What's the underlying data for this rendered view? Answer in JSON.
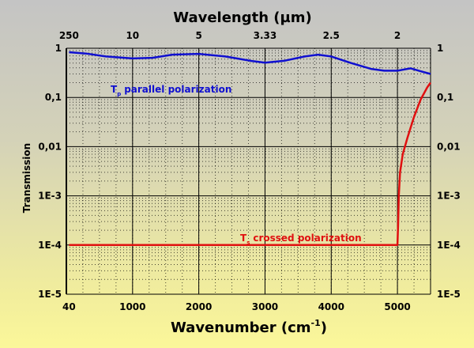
{
  "chart_data": {
    "type": "line",
    "title": "Wavelength (µm)",
    "xlabel": "Wavenumber (cm-1)",
    "xlabel_main": "Wavenumber (cm",
    "xlabel_sup": "-1",
    "xlabel_end": ")",
    "ylabel": "Transmission",
    "xlim": [
      0,
      5500
    ],
    "ylim": [
      1e-05,
      1
    ],
    "yscale": "log",
    "grid": true,
    "x_ticks": [
      40,
      1000,
      2000,
      3000,
      4000,
      5000
    ],
    "x_tick_labels": [
      "40",
      "1000",
      "2000",
      "3000",
      "4000",
      "5000"
    ],
    "top_ticks": [
      40,
      1000,
      2000,
      3000,
      4000,
      5000
    ],
    "top_tick_labels": [
      "250",
      "10",
      "5",
      "3.33",
      "2.5",
      "2"
    ],
    "y_ticks": [
      1,
      0.1,
      0.01,
      0.001,
      0.0001,
      1e-05
    ],
    "y_tick_labels": [
      "1",
      "0,1",
      "0,01",
      "1E-3",
      "1E-4",
      "1E-5"
    ],
    "series": [
      {
        "name": "parallel polarization",
        "symbol": "T",
        "subscript": "p",
        "color": "#1010d0",
        "x": [
          40,
          300,
          600,
          1000,
          1300,
          1600,
          2000,
          2400,
          2800,
          3000,
          3300,
          3600,
          3800,
          4000,
          4300,
          4600,
          4800,
          5000,
          5200,
          5350,
          5500
        ],
        "y": [
          0.83,
          0.78,
          0.68,
          0.62,
          0.64,
          0.74,
          0.77,
          0.68,
          0.55,
          0.51,
          0.56,
          0.68,
          0.74,
          0.68,
          0.5,
          0.38,
          0.35,
          0.35,
          0.39,
          0.34,
          0.3
        ]
      },
      {
        "name": "crossed polarization",
        "symbol": "T",
        "subscript": "s",
        "color": "#e01010",
        "x": [
          40,
          5000,
          5010,
          5020,
          5040,
          5080,
          5150,
          5250,
          5350,
          5450,
          5500
        ],
        "y": [
          0.0001,
          0.0001,
          0.00025,
          0.001,
          0.003,
          0.007,
          0.015,
          0.04,
          0.09,
          0.16,
          0.2
        ]
      }
    ]
  }
}
